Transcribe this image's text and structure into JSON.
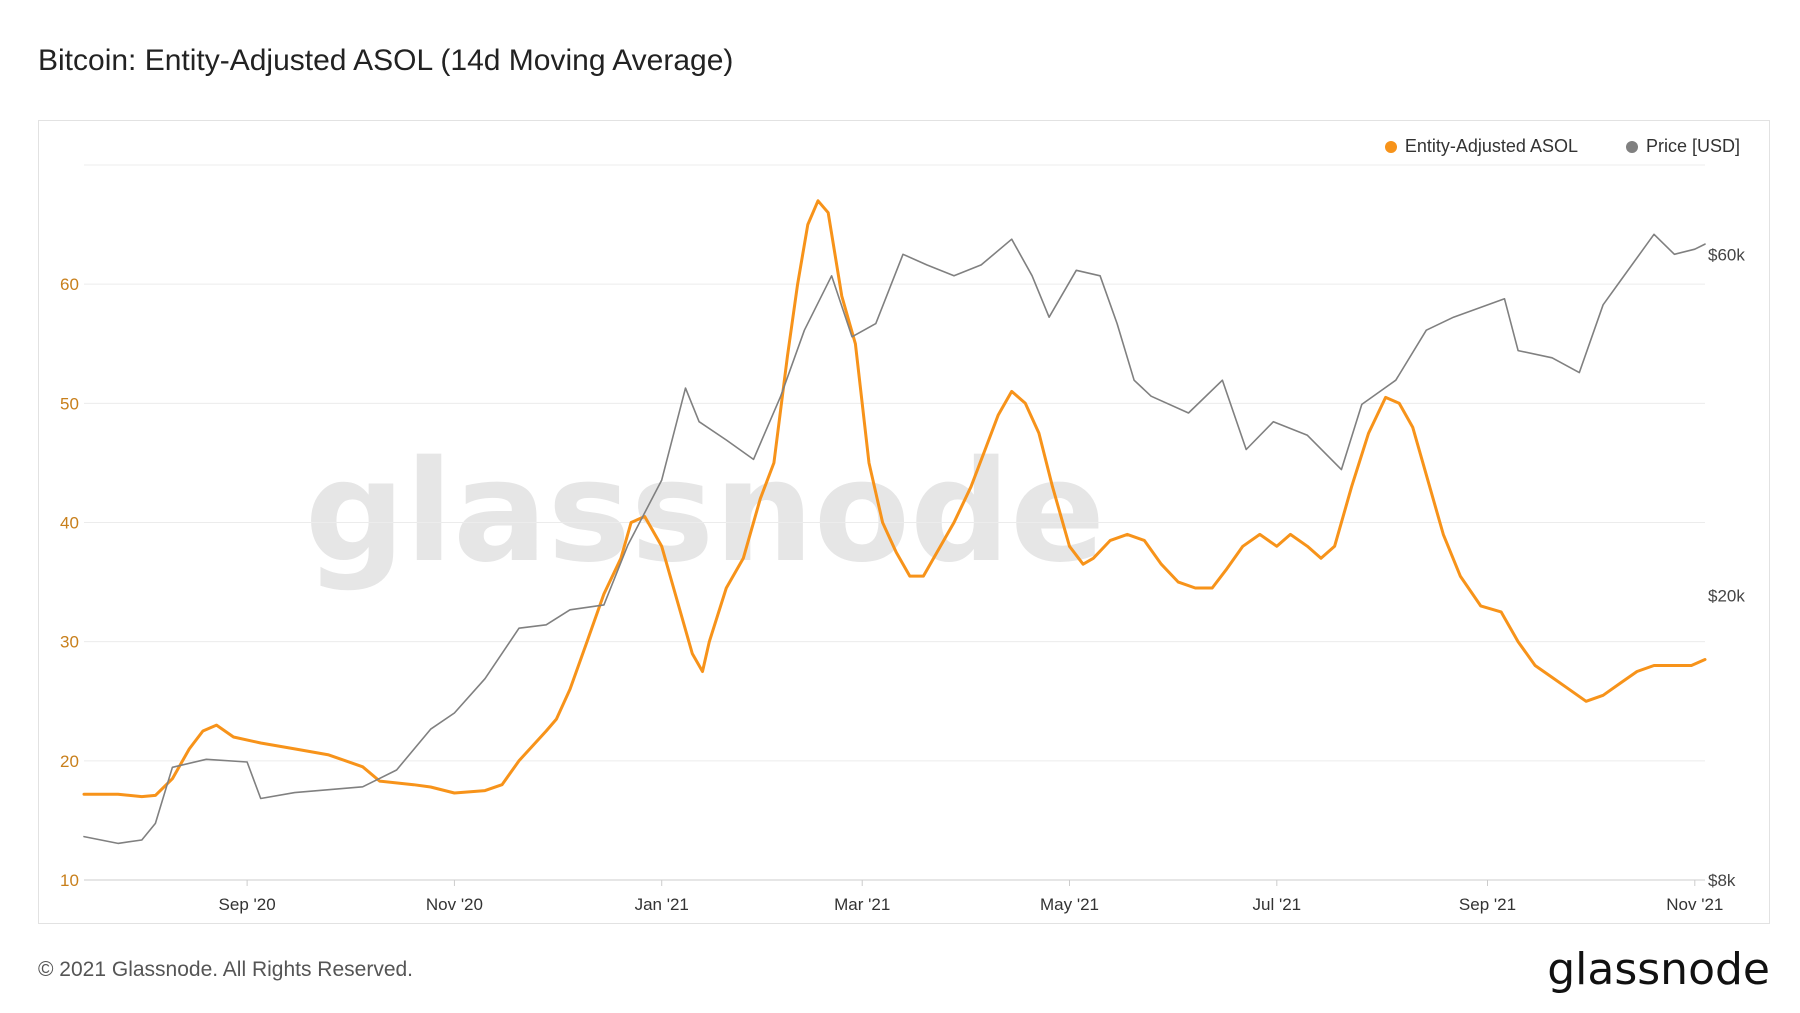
{
  "header": {
    "title": "Bitcoin: Entity-Adjusted ASOL (14d Moving Average)"
  },
  "footer": {
    "copyright": "© 2021 Glassnode. All Rights Reserved.",
    "logo_text": "glassnode"
  },
  "watermark": {
    "text": "glassnode"
  },
  "colors": {
    "asol": "#f7931a",
    "price": "#808080",
    "grid": "#ececec",
    "left_axis": "#c87f1b",
    "right_axis": "#444444"
  },
  "chart_data": {
    "type": "line",
    "title": "Bitcoin: Entity-Adjusted ASOL (14d Moving Average)",
    "legend_position": "top-right",
    "legend": [
      "Entity-Adjusted ASOL",
      "Price [USD]"
    ],
    "x_ticks": [
      "Sep '20",
      "Nov '20",
      "Jan '21",
      "Mar '21",
      "May '21",
      "Jul '21",
      "Sep '21",
      "Nov '21"
    ],
    "x_tick_dates": [
      "2020-09-01",
      "2020-11-01",
      "2021-01-01",
      "2021-03-01",
      "2021-05-01",
      "2021-07-01",
      "2021-09-01",
      "2021-11-01"
    ],
    "x_range": [
      "2020-07-15",
      "2021-11-04"
    ],
    "y_left": {
      "ticks": [
        10,
        20,
        30,
        40,
        50,
        60
      ],
      "ylim": [
        10,
        70
      ]
    },
    "y_right": {
      "scale": "log",
      "ticks": [
        8000,
        20000,
        60000
      ],
      "tick_labels": [
        "$8k",
        "$20k",
        "$60k"
      ],
      "ylim": [
        8000,
        80000
      ]
    },
    "grid": true,
    "series": [
      {
        "name": "Entity-Adjusted ASOL",
        "axis": "left",
        "points": [
          [
            "2020-07-15",
            17.2
          ],
          [
            "2020-07-25",
            17.2
          ],
          [
            "2020-08-01",
            17.0
          ],
          [
            "2020-08-05",
            17.1
          ],
          [
            "2020-08-10",
            18.5
          ],
          [
            "2020-08-15",
            21.0
          ],
          [
            "2020-08-19",
            22.5
          ],
          [
            "2020-08-23",
            23.0
          ],
          [
            "2020-08-28",
            22.0
          ],
          [
            "2020-09-05",
            21.5
          ],
          [
            "2020-09-15",
            21.0
          ],
          [
            "2020-09-25",
            20.5
          ],
          [
            "2020-10-05",
            19.5
          ],
          [
            "2020-10-10",
            18.3
          ],
          [
            "2020-10-20",
            18.0
          ],
          [
            "2020-10-25",
            17.8
          ],
          [
            "2020-11-01",
            17.3
          ],
          [
            "2020-11-10",
            17.5
          ],
          [
            "2020-11-15",
            18.0
          ],
          [
            "2020-11-20",
            20.0
          ],
          [
            "2020-11-28",
            22.5
          ],
          [
            "2020-12-01",
            23.5
          ],
          [
            "2020-12-05",
            26.0
          ],
          [
            "2020-12-10",
            30.0
          ],
          [
            "2020-12-15",
            34.0
          ],
          [
            "2020-12-20",
            37.0
          ],
          [
            "2020-12-23",
            40.0
          ],
          [
            "2020-12-27",
            40.5
          ],
          [
            "2021-01-01",
            38.0
          ],
          [
            "2021-01-05",
            34.0
          ],
          [
            "2021-01-10",
            29.0
          ],
          [
            "2021-01-13",
            27.5
          ],
          [
            "2021-01-15",
            30.0
          ],
          [
            "2021-01-20",
            34.5
          ],
          [
            "2021-01-25",
            37.0
          ],
          [
            "2021-01-30",
            42.0
          ],
          [
            "2021-02-03",
            45.0
          ],
          [
            "2021-02-07",
            54.0
          ],
          [
            "2021-02-10",
            60.0
          ],
          [
            "2021-02-13",
            65.0
          ],
          [
            "2021-02-16",
            67.0
          ],
          [
            "2021-02-19",
            66.0
          ],
          [
            "2021-02-23",
            59.0
          ],
          [
            "2021-02-27",
            55.0
          ],
          [
            "2021-03-03",
            45.0
          ],
          [
            "2021-03-07",
            40.0
          ],
          [
            "2021-03-11",
            37.5
          ],
          [
            "2021-03-15",
            35.5
          ],
          [
            "2021-03-19",
            35.5
          ],
          [
            "2021-03-23",
            37.5
          ],
          [
            "2021-03-28",
            40.0
          ],
          [
            "2021-04-02",
            43.0
          ],
          [
            "2021-04-06",
            46.0
          ],
          [
            "2021-04-10",
            49.0
          ],
          [
            "2021-04-14",
            51.0
          ],
          [
            "2021-04-18",
            50.0
          ],
          [
            "2021-04-22",
            47.5
          ],
          [
            "2021-04-26",
            43.0
          ],
          [
            "2021-05-01",
            38.0
          ],
          [
            "2021-05-05",
            36.5
          ],
          [
            "2021-05-08",
            37.0
          ],
          [
            "2021-05-13",
            38.5
          ],
          [
            "2021-05-18",
            39.0
          ],
          [
            "2021-05-23",
            38.5
          ],
          [
            "2021-05-28",
            36.5
          ],
          [
            "2021-06-02",
            35.0
          ],
          [
            "2021-06-07",
            34.5
          ],
          [
            "2021-06-12",
            34.5
          ],
          [
            "2021-06-16",
            36.0
          ],
          [
            "2021-06-21",
            38.0
          ],
          [
            "2021-06-26",
            39.0
          ],
          [
            "2021-07-01",
            38.0
          ],
          [
            "2021-07-05",
            39.0
          ],
          [
            "2021-07-10",
            38.0
          ],
          [
            "2021-07-14",
            37.0
          ],
          [
            "2021-07-18",
            38.0
          ],
          [
            "2021-07-23",
            43.0
          ],
          [
            "2021-07-28",
            47.5
          ],
          [
            "2021-08-02",
            50.5
          ],
          [
            "2021-08-06",
            50.0
          ],
          [
            "2021-08-10",
            48.0
          ],
          [
            "2021-08-14",
            44.0
          ],
          [
            "2021-08-19",
            39.0
          ],
          [
            "2021-08-24",
            35.5
          ],
          [
            "2021-08-30",
            33.0
          ],
          [
            "2021-09-05",
            32.5
          ],
          [
            "2021-09-10",
            30.0
          ],
          [
            "2021-09-15",
            28.0
          ],
          [
            "2021-09-20",
            27.0
          ],
          [
            "2021-09-25",
            26.0
          ],
          [
            "2021-09-30",
            25.0
          ],
          [
            "2021-10-05",
            25.5
          ],
          [
            "2021-10-10",
            26.5
          ],
          [
            "2021-10-15",
            27.5
          ],
          [
            "2021-10-20",
            28.0
          ],
          [
            "2021-10-25",
            28.0
          ],
          [
            "2021-10-31",
            28.0
          ],
          [
            "2021-11-04",
            28.5
          ]
        ]
      },
      {
        "name": "Price [USD]",
        "axis": "right",
        "points": [
          [
            "2020-07-15",
            9200
          ],
          [
            "2020-07-25",
            9000
          ],
          [
            "2020-08-01",
            9100
          ],
          [
            "2020-08-05",
            9600
          ],
          [
            "2020-08-10",
            11500
          ],
          [
            "2020-08-20",
            11800
          ],
          [
            "2020-09-01",
            11700
          ],
          [
            "2020-09-05",
            10400
          ],
          [
            "2020-09-15",
            10600
          ],
          [
            "2020-09-25",
            10700
          ],
          [
            "2020-10-05",
            10800
          ],
          [
            "2020-10-15",
            11400
          ],
          [
            "2020-10-25",
            13000
          ],
          [
            "2020-11-01",
            13700
          ],
          [
            "2020-11-10",
            15300
          ],
          [
            "2020-11-20",
            18000
          ],
          [
            "2020-11-28",
            18200
          ],
          [
            "2020-12-05",
            19100
          ],
          [
            "2020-12-15",
            19400
          ],
          [
            "2020-12-22",
            23500
          ],
          [
            "2021-01-01",
            29000
          ],
          [
            "2021-01-08",
            39000
          ],
          [
            "2021-01-12",
            35000
          ],
          [
            "2021-01-20",
            33000
          ],
          [
            "2021-01-28",
            31000
          ],
          [
            "2021-02-05",
            38000
          ],
          [
            "2021-02-12",
            47000
          ],
          [
            "2021-02-20",
            56000
          ],
          [
            "2021-02-26",
            46000
          ],
          [
            "2021-03-05",
            48000
          ],
          [
            "2021-03-13",
            60000
          ],
          [
            "2021-03-20",
            58000
          ],
          [
            "2021-03-28",
            56000
          ],
          [
            "2021-04-05",
            58000
          ],
          [
            "2021-04-14",
            63000
          ],
          [
            "2021-04-20",
            56000
          ],
          [
            "2021-04-25",
            49000
          ],
          [
            "2021-05-03",
            57000
          ],
          [
            "2021-05-10",
            56000
          ],
          [
            "2021-05-15",
            48000
          ],
          [
            "2021-05-20",
            40000
          ],
          [
            "2021-05-25",
            38000
          ],
          [
            "2021-06-05",
            36000
          ],
          [
            "2021-06-15",
            40000
          ],
          [
            "2021-06-22",
            32000
          ],
          [
            "2021-06-30",
            35000
          ],
          [
            "2021-07-10",
            33500
          ],
          [
            "2021-07-20",
            30000
          ],
          [
            "2021-07-26",
            37000
          ],
          [
            "2021-08-05",
            40000
          ],
          [
            "2021-08-14",
            47000
          ],
          [
            "2021-08-22",
            49000
          ],
          [
            "2021-09-06",
            52000
          ],
          [
            "2021-09-10",
            44000
          ],
          [
            "2021-09-20",
            43000
          ],
          [
            "2021-09-28",
            41000
          ],
          [
            "2021-10-05",
            51000
          ],
          [
            "2021-10-10",
            55000
          ],
          [
            "2021-10-20",
            64000
          ],
          [
            "2021-10-26",
            60000
          ],
          [
            "2021-11-01",
            61000
          ],
          [
            "2021-11-04",
            62000
          ]
        ]
      }
    ]
  }
}
